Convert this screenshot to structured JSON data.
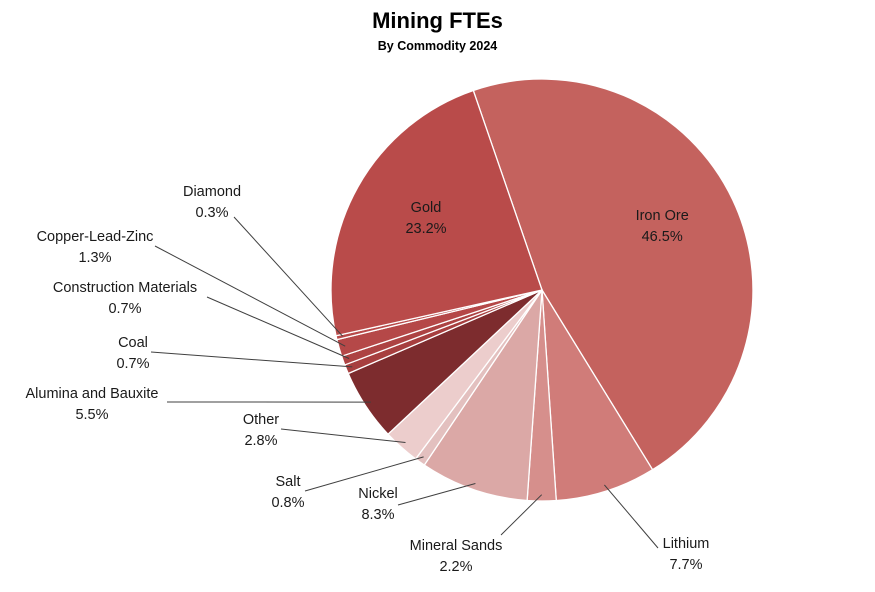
{
  "chart_data": {
    "type": "pie",
    "title": "Mining FTEs",
    "subtitle": "By Commodity 2024",
    "slices": [
      {
        "label": "Iron Ore",
        "value": 46.5,
        "display": "46.5%",
        "color": "#c4625e"
      },
      {
        "label": "Lithium",
        "value": 7.7,
        "display": "7.7%",
        "color": "#d07c79"
      },
      {
        "label": "Mineral Sands",
        "value": 2.2,
        "display": "2.2%",
        "color": "#d68f8c"
      },
      {
        "label": "Nickel",
        "value": 8.3,
        "display": "8.3%",
        "color": "#dba8a6"
      },
      {
        "label": "Salt",
        "value": 0.8,
        "display": "0.8%",
        "color": "#e3c0bf"
      },
      {
        "label": "Other",
        "value": 2.8,
        "display": "2.8%",
        "color": "#eccdcc"
      },
      {
        "label": "Alumina and Bauxite",
        "value": 5.5,
        "display": "5.5%",
        "color": "#7d2c2e"
      },
      {
        "label": "Coal",
        "value": 0.7,
        "display": "0.7%",
        "color": "#a73f3f"
      },
      {
        "label": "Construction Materials",
        "value": 0.7,
        "display": "0.7%",
        "color": "#ad4343"
      },
      {
        "label": "Copper-Lead-Zinc",
        "value": 1.3,
        "display": "1.3%",
        "color": "#b54848"
      },
      {
        "label": "Diamond",
        "value": 0.3,
        "display": "0.3%",
        "color": "#b84a4a"
      },
      {
        "label": "Gold",
        "value": 23.2,
        "display": "23.2%",
        "color": "#b94b4a"
      }
    ]
  }
}
